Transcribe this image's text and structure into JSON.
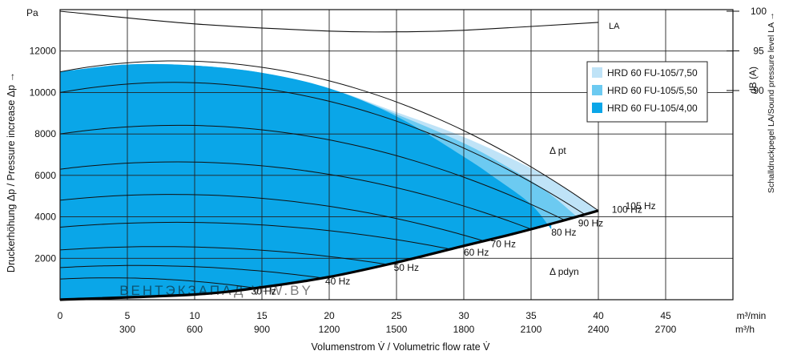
{
  "chart_data": {
    "type": "area",
    "title": "",
    "y_unit": "Pa",
    "ylabel": "Druckerhöhung Δp / Pressure increase Δp →",
    "xlabel": "Volumenstrom V̇ / Volumetric flow rate V̇",
    "right_axis_label": "Schalldruckpegel LA/Sound pressure level LA →",
    "right_axis_unit": "dB (A)",
    "x_unit_primary": "m³/min",
    "x_unit_secondary": "m³/h",
    "xlim": [
      0,
      50
    ],
    "ylim": [
      0,
      14000
    ],
    "x_ticks": [
      "0",
      "5",
      "10",
      "15",
      "20",
      "25",
      "30",
      "35",
      "40",
      "45"
    ],
    "x_ticks_secondary": [
      "300",
      "600",
      "900",
      "1200",
      "1500",
      "1800",
      "2100",
      "2400",
      "2700"
    ],
    "y_ticks": [
      "2000",
      "4000",
      "6000",
      "8000",
      "10000",
      "12000"
    ],
    "right_ticks": [
      "90",
      "95",
      "100"
    ],
    "grid": true,
    "legend_position": "top-right",
    "series": [
      {
        "name": "HRD 60 FU-105/7,50",
        "color": "#bfe3f7",
        "x": [
          0,
          5,
          10,
          15,
          20,
          25,
          30,
          35,
          38,
          40
        ],
        "y": [
          11000,
          11350,
          11300,
          10950,
          10200,
          9050,
          7850,
          6350,
          5200,
          4300
        ]
      },
      {
        "name": "HRD 60 FU-105/5,50",
        "color": "#6ccaf1",
        "x": [
          0,
          5,
          10,
          15,
          20,
          25,
          30,
          33,
          36,
          38.5
        ],
        "y": [
          11000,
          11350,
          11300,
          10950,
          10200,
          8950,
          7550,
          6500,
          5300,
          3950
        ]
      },
      {
        "name": "HRD 60 FU-105/4,00",
        "color": "#0aa6e8",
        "x": [
          0,
          5,
          10,
          15,
          20,
          25,
          30,
          32.5,
          35,
          36.5
        ],
        "y": [
          11000,
          11350,
          11300,
          10950,
          10200,
          8850,
          6900,
          5800,
          4600,
          3400
        ]
      }
    ],
    "system_curve": {
      "x": [
        0,
        10,
        15,
        20,
        25,
        30,
        33.5,
        37,
        40
      ],
      "y": [
        0,
        250,
        600,
        1100,
        1800,
        2600,
        3150,
        3750,
        4300
      ]
    },
    "la_curve": {
      "label": "LA",
      "x": [
        0,
        10,
        20,
        25,
        30,
        40
      ],
      "db": [
        100,
        98.4,
        97.5,
        97.4,
        97.6,
        98.6
      ]
    },
    "frequency_curves": [
      {
        "label": "30 Hz",
        "peak": 1000,
        "x_end": 14.5,
        "label_x": 14.2
      },
      {
        "label": "40 Hz",
        "peak": 1550,
        "x_end": 19.5,
        "label_x": 19.7
      },
      {
        "label": "50 Hz",
        "peak": 2400,
        "x_end": 24.3,
        "label_x": 24.8
      },
      {
        "label": "60 Hz",
        "peak": 3500,
        "x_end": 29,
        "label_x": 30
      },
      {
        "label": "70 Hz",
        "peak": 4800,
        "x_end": 31.5,
        "label_x": 32
      },
      {
        "label": "80 Hz",
        "peak": 6300,
        "x_end": 35,
        "label_x": 36.5
      },
      {
        "label": "90 Hz",
        "peak": 8000,
        "x_end": 37.5,
        "label_x": 38.5
      },
      {
        "label": "100 Hz",
        "peak": 10000,
        "x_end": 39,
        "label_x": 41
      },
      {
        "label": "105 Hz",
        "peak": 11000,
        "x_end": 40,
        "label_x": 42
      }
    ],
    "annotations": [
      "Δ pt",
      "Δ pdyn"
    ],
    "watermark": "ВЕНТЭКЗАПАД V-W.BY"
  }
}
